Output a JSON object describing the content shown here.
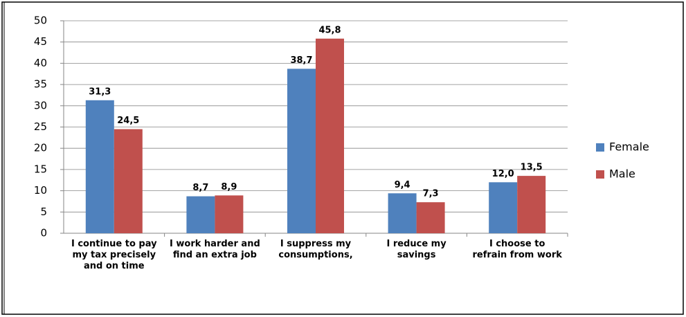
{
  "chart_data": {
    "type": "bar",
    "categories": [
      "I continue to pay my tax precisely and on time",
      "I work harder and find an extra job",
      "I suppress my consumptions,",
      "I reduce my savings",
      "I choose to refrain from work"
    ],
    "series": [
      {
        "name": "Female",
        "color": "#4f81bd",
        "values": [
          31.3,
          8.7,
          38.7,
          9.4,
          12.0
        ],
        "value_labels": [
          "31,3",
          "8,7",
          "38,7",
          "9,4",
          "12,0"
        ]
      },
      {
        "name": "Male",
        "color": "#c0504d",
        "values": [
          24.5,
          8.9,
          45.8,
          7.3,
          13.5
        ],
        "value_labels": [
          "24,5",
          "8,9",
          "45,8",
          "7,3",
          "13,5"
        ]
      }
    ],
    "ylim": [
      0,
      50
    ],
    "yticks": [
      0,
      5,
      10,
      15,
      20,
      25,
      30,
      35,
      40,
      45,
      50
    ],
    "grid": true,
    "legend": "right"
  }
}
